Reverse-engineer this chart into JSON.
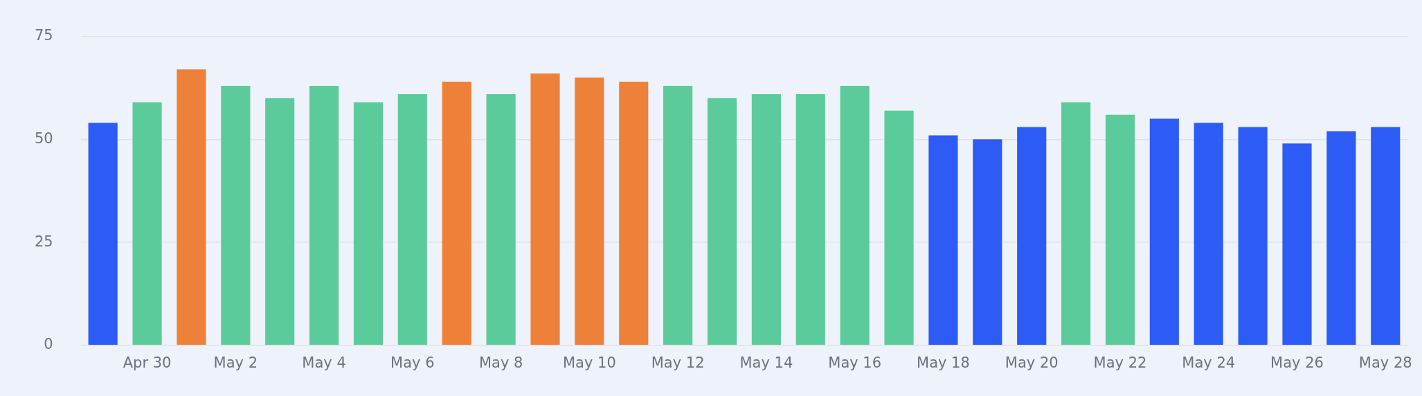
{
  "chart_data": {
    "type": "bar",
    "categories": [
      null,
      "Apr 30",
      null,
      "May 2",
      null,
      "May 4",
      null,
      "May 6",
      null,
      "May 8",
      null,
      "May 10",
      null,
      "May 12",
      null,
      "May 14",
      null,
      "May 16",
      null,
      "May 18",
      null,
      "May 20",
      null,
      "May 22",
      null,
      "May 24",
      null,
      "May 26",
      null,
      "May 28"
    ],
    "values": [
      54,
      59,
      67,
      63,
      60,
      63,
      59,
      61,
      64,
      61,
      66,
      65,
      64,
      63,
      60,
      61,
      61,
      63,
      57,
      51,
      50,
      53,
      59,
      56,
      55,
      54,
      53,
      49,
      52,
      53
    ],
    "colors": [
      "#2d5bf5",
      "#5ccb9b",
      "#ee8139",
      "#5ccb9b",
      "#5ccb9b",
      "#5ccb9b",
      "#5ccb9b",
      "#5ccb9b",
      "#ee8139",
      "#5ccb9b",
      "#ee8139",
      "#ee8139",
      "#ee8139",
      "#5ccb9b",
      "#5ccb9b",
      "#5ccb9b",
      "#5ccb9b",
      "#5ccb9b",
      "#5ccb9b",
      "#2d5bf5",
      "#2d5bf5",
      "#2d5bf5",
      "#5ccb9b",
      "#5ccb9b",
      "#2d5bf5",
      "#2d5bf5",
      "#2d5bf5",
      "#2d5bf5",
      "#2d5bf5",
      "#2d5bf5"
    ],
    "ylim": [
      0,
      75
    ],
    "yticks": [
      0,
      25,
      50,
      75
    ],
    "grid": "y",
    "legend": false
  }
}
